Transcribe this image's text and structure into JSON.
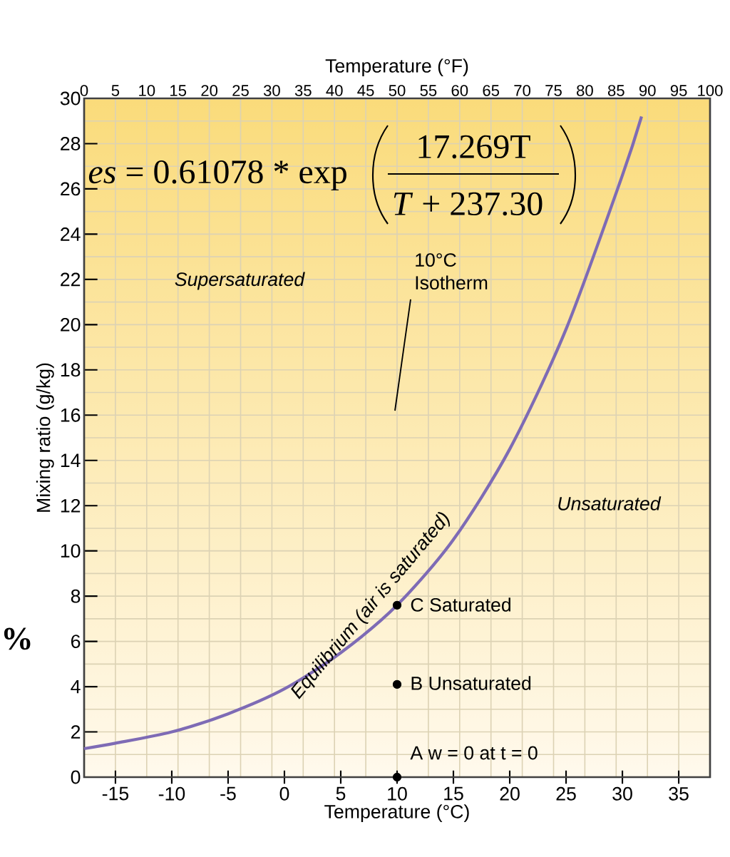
{
  "chart_data": {
    "type": "line",
    "xlabel": "Temperature (°C)",
    "ylabel": "Mixing ratio (g/kg)",
    "x2label": "Temperature (°F)",
    "xlim": [
      -17.78,
      37.78
    ],
    "xticks": [
      -15,
      -10,
      -5,
      0,
      5,
      10,
      15,
      20,
      25,
      30,
      35
    ],
    "x2lim": [
      0,
      100
    ],
    "x2ticks": [
      0,
      5,
      10,
      15,
      20,
      25,
      30,
      35,
      40,
      45,
      50,
      55,
      60,
      65,
      70,
      75,
      80,
      85,
      90,
      95,
      100
    ],
    "ylim": [
      0,
      30
    ],
    "yticks": [
      0,
      2,
      4,
      6,
      8,
      10,
      12,
      14,
      16,
      18,
      20,
      22,
      24,
      26,
      28,
      30
    ],
    "grid": true,
    "series": [
      {
        "name": "Equilibrium (air is saturated)",
        "color": "#7e6bb5",
        "x": [
          -17.78,
          -15,
          -10,
          -5,
          0,
          5,
          10,
          15,
          20,
          25,
          30,
          31.7
        ],
        "values": [
          1.26,
          1.5,
          2.0,
          2.8,
          3.9,
          5.5,
          7.6,
          10.5,
          14.5,
          19.8,
          26.6,
          29.2
        ]
      },
      {
        "type": "scatter",
        "color": "#000000",
        "x": [
          10,
          10,
          10
        ],
        "values": [
          0,
          4.1,
          7.6
        ]
      }
    ],
    "annotations": [
      "Supersaturated",
      "10°C Isotherm",
      "Unsaturated",
      "C  Saturated",
      "B  Unsaturated",
      "A w = 0 at t = 0",
      "*es* = 0.61078 * exp",
      "17.269T",
      "*T* + 237.30",
      "%"
    ]
  }
}
